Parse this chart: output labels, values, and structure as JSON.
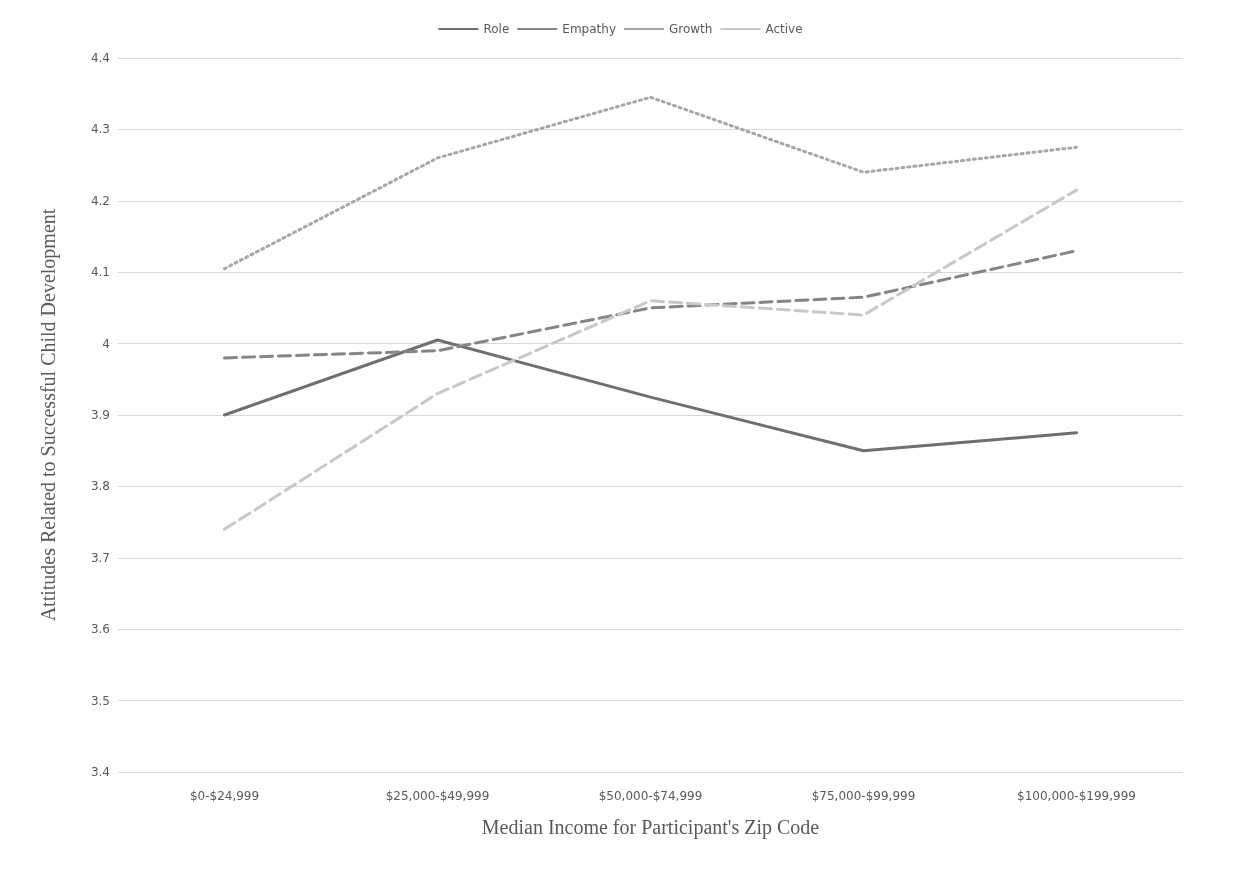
{
  "chart_data": {
    "type": "line",
    "xlabel": "Median Income for Participant's Zip Code",
    "ylabel": "Attitudes Related to Successful Child Development",
    "categories": [
      "$0-$24,999",
      "$25,000-$49,999",
      "$50,000-$74,999",
      "$75,000-$99,999",
      "$100,000-$199,999"
    ],
    "series": [
      {
        "name": "Role",
        "color": "#6f6f6f",
        "line_style": "solid",
        "values": [
          3.9,
          4.005,
          3.925,
          3.85,
          3.875
        ]
      },
      {
        "name": "Empathy",
        "color": "#858585",
        "line_style": "dashed",
        "values": [
          3.98,
          3.99,
          4.05,
          4.065,
          4.13
        ]
      },
      {
        "name": "Growth",
        "color": "#a6a6a6",
        "line_style": "dotted",
        "values": [
          4.105,
          4.26,
          4.345,
          4.24,
          4.275
        ]
      },
      {
        "name": "Active",
        "color": "#c8c8c8",
        "line_style": "dashed",
        "values": [
          3.74,
          3.93,
          4.06,
          4.04,
          4.215
        ]
      }
    ],
    "ylim": [
      3.4,
      4.4
    ],
    "yticks": [
      3.4,
      3.5,
      3.6,
      3.7,
      3.8,
      3.9,
      4,
      4.1,
      4.2,
      4.3,
      4.4
    ],
    "grid": "y",
    "legend": "top",
    "marker": "none"
  }
}
